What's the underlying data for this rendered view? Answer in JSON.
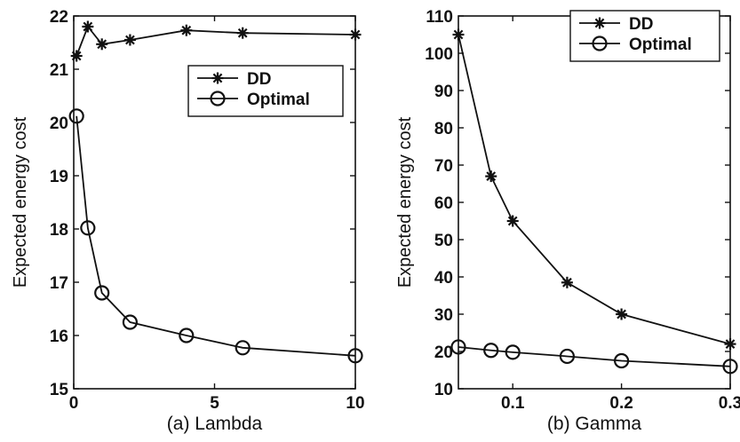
{
  "chart_data": [
    {
      "type": "line",
      "xlabel": "(a)  Lambda",
      "ylabel": "Expected energy cost",
      "xlim": [
        0,
        10
      ],
      "ylim": [
        15,
        22
      ],
      "xticks": [
        0,
        5,
        10
      ],
      "yticks": [
        15,
        16,
        17,
        18,
        19,
        20,
        21,
        22
      ],
      "grid": false,
      "legend_position": "upper-right",
      "series": [
        {
          "name": "DD",
          "marker": "star",
          "x": [
            0.1,
            0.5,
            1,
            2,
            4,
            6,
            10
          ],
          "y": [
            21.25,
            21.8,
            21.47,
            21.55,
            21.73,
            21.68,
            21.65
          ]
        },
        {
          "name": "Optimal",
          "marker": "circle",
          "x": [
            0.1,
            0.5,
            1,
            2,
            4,
            6,
            10
          ],
          "y": [
            20.12,
            18.02,
            16.8,
            16.25,
            16.0,
            15.77,
            15.62
          ]
        }
      ]
    },
    {
      "type": "line",
      "xlabel": "(b)  Gamma",
      "ylabel": "Expected energy cost",
      "xlim": [
        0.05,
        0.3
      ],
      "ylim": [
        10,
        110
      ],
      "xticks": [
        0.1,
        0.2,
        0.3
      ],
      "yticks": [
        10,
        20,
        30,
        40,
        50,
        60,
        70,
        80,
        90,
        100,
        110
      ],
      "grid": false,
      "legend_position": "upper-right",
      "series": [
        {
          "name": "DD",
          "marker": "star",
          "x": [
            0.05,
            0.08,
            0.1,
            0.15,
            0.2,
            0.3
          ],
          "y": [
            105,
            67,
            55,
            38.5,
            30,
            22
          ]
        },
        {
          "name": "Optimal",
          "marker": "circle",
          "x": [
            0.05,
            0.08,
            0.1,
            0.15,
            0.2,
            0.3
          ],
          "y": [
            21.2,
            20.3,
            19.8,
            18.7,
            17.5,
            16
          ]
        }
      ]
    }
  ]
}
